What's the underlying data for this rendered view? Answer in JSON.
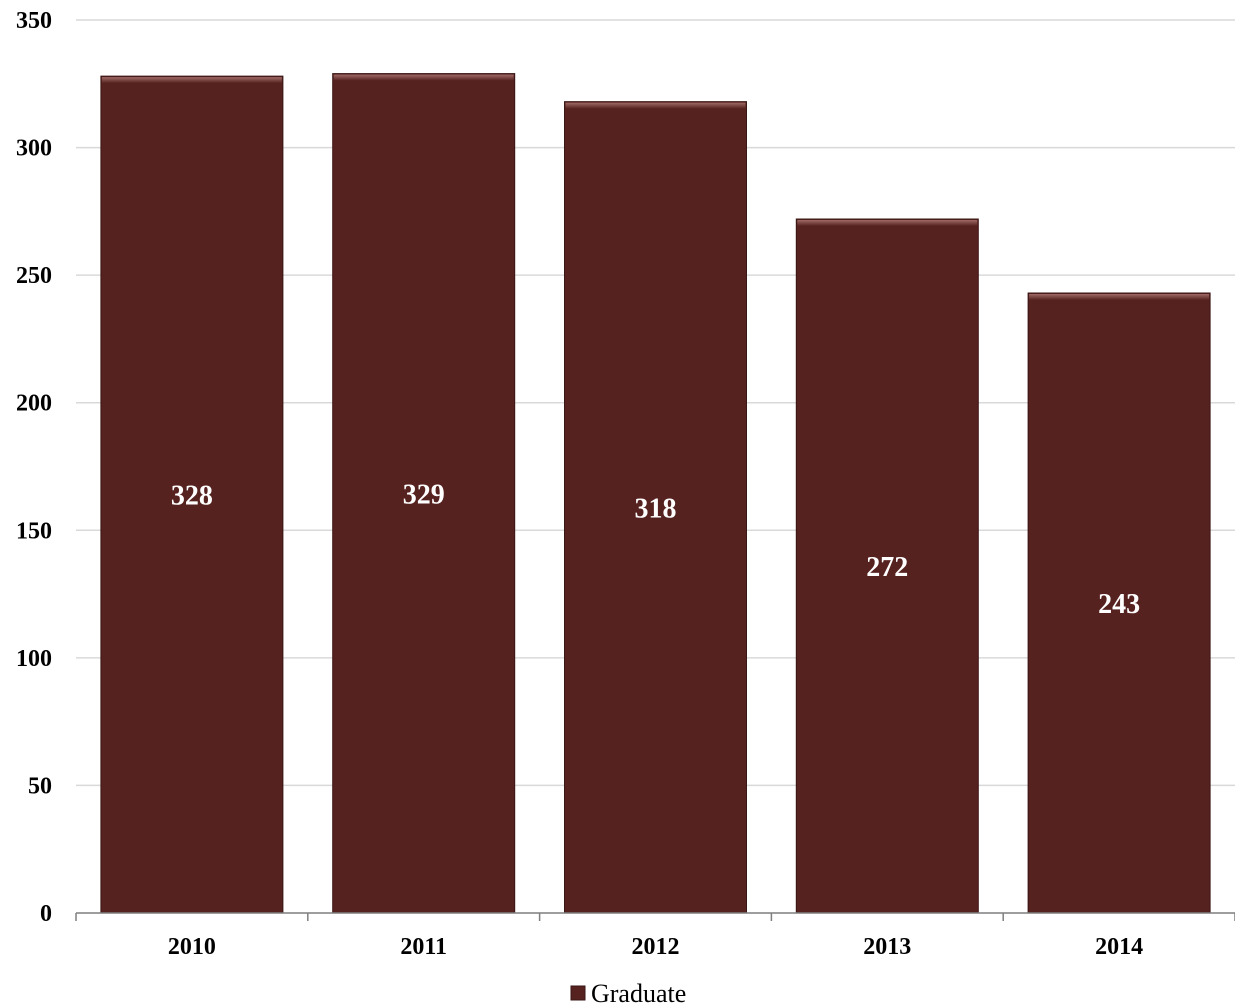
{
  "chart_data": {
    "type": "bar",
    "title": "",
    "xlabel": "",
    "ylabel": "",
    "categories": [
      "2010",
      "2011",
      "2012",
      "2013",
      "2014"
    ],
    "series": [
      {
        "name": "Graduate",
        "values": [
          328,
          329,
          318,
          272,
          243
        ],
        "color": "#55221f"
      }
    ],
    "ylim": [
      0,
      350
    ],
    "yticks": [
      0,
      50,
      100,
      150,
      200,
      250,
      300,
      350
    ],
    "ytick_labels": [
      "0",
      "50",
      "100",
      "150",
      "200",
      "250",
      "300",
      "350"
    ],
    "data_labels": [
      "328",
      "329",
      "318",
      "272",
      "243"
    ],
    "grid": true,
    "gridline_color": "#d9d9d9",
    "legend_position": "bottom"
  }
}
